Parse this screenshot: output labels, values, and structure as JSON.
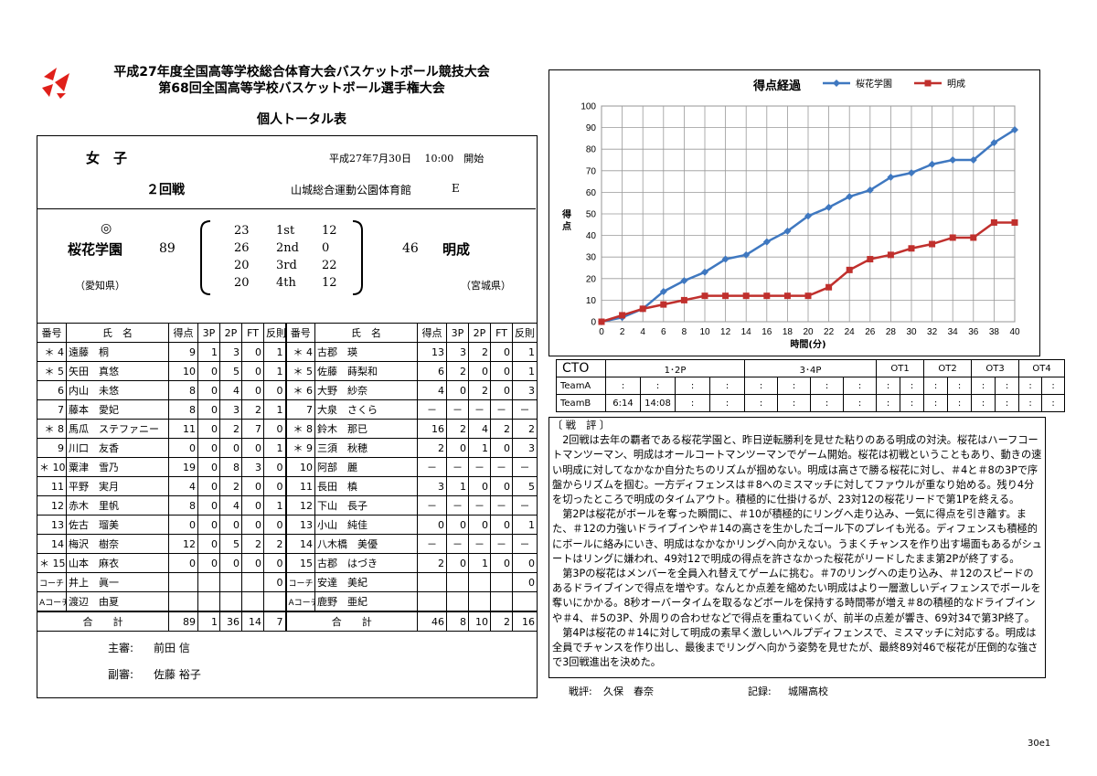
{
  "header": {
    "title1": "平成27年度全国高等学校総合体育大会バスケットボール競技大会",
    "title2": "第68回全国高等学校バスケットボール選手権大会",
    "subtitle": "個人トータル表"
  },
  "game": {
    "category": "女　子",
    "date_time": "平成27年7月30日　 10:00　開始",
    "round": "２回戦",
    "venue": "山城総合運動公園体育館",
    "court": "E",
    "winner_mark": "◎",
    "team_a": "桜花学園",
    "team_a_pref": "（愛知県）",
    "team_a_score": "89",
    "team_b": "明成",
    "team_b_pref": "（宮城県）",
    "team_b_score": "46",
    "quarters": [
      {
        "a": "23",
        "label": "1st",
        "b": "12"
      },
      {
        "a": "26",
        "label": "2nd",
        "b": "0"
      },
      {
        "a": "20",
        "label": "3rd",
        "b": "22"
      },
      {
        "a": "20",
        "label": "4th",
        "b": "12"
      }
    ]
  },
  "stats": {
    "columns": [
      "番号",
      "氏　名",
      "得点",
      "3P",
      "2P",
      "FT",
      "反則"
    ],
    "rows": [
      {
        "a": [
          "＊ 4",
          "遠藤　桐",
          "9",
          "1",
          "3",
          "0",
          "1"
        ],
        "b": [
          "＊ 4",
          "古郡　瑛",
          "13",
          "3",
          "2",
          "0",
          "1"
        ]
      },
      {
        "a": [
          "＊ 5",
          "矢田　真悠",
          "10",
          "0",
          "5",
          "0",
          "1"
        ],
        "b": [
          "＊ 5",
          "佐藤　蒔梨和",
          "6",
          "2",
          "0",
          "0",
          "1"
        ]
      },
      {
        "a": [
          "6",
          "内山　未悠",
          "8",
          "0",
          "4",
          "0",
          "0"
        ],
        "b": [
          "＊ 6",
          "大野　紗奈",
          "4",
          "0",
          "2",
          "0",
          "3"
        ]
      },
      {
        "a": [
          "7",
          "藤本　愛妃",
          "8",
          "0",
          "3",
          "2",
          "1"
        ],
        "b": [
          "7",
          "大泉　さくら",
          "－",
          "－",
          "－",
          "－",
          "－"
        ]
      },
      {
        "a": [
          "＊ 8",
          "馬瓜　ステファニー",
          "11",
          "0",
          "2",
          "7",
          "0"
        ],
        "b": [
          "＊ 8",
          "鈴木　那已",
          "16",
          "2",
          "4",
          "2",
          "2"
        ]
      },
      {
        "a": [
          "9",
          "川口　友香",
          "0",
          "0",
          "0",
          "0",
          "1"
        ],
        "b": [
          "＊ 9",
          "三須　秋穂",
          "2",
          "0",
          "1",
          "0",
          "3"
        ]
      },
      {
        "a": [
          "＊ 10",
          "粟津　雪乃",
          "19",
          "0",
          "8",
          "3",
          "0"
        ],
        "b": [
          "10",
          "阿部　麗",
          "－",
          "－",
          "－",
          "－",
          "－"
        ]
      },
      {
        "a": [
          "11",
          "平野　実月",
          "4",
          "0",
          "2",
          "0",
          "0"
        ],
        "b": [
          "11",
          "長田　槙",
          "3",
          "1",
          "0",
          "0",
          "5"
        ]
      },
      {
        "a": [
          "12",
          "赤木　里帆",
          "8",
          "0",
          "4",
          "0",
          "1"
        ],
        "b": [
          "12",
          "下山　長子",
          "－",
          "－",
          "－",
          "－",
          "－"
        ]
      },
      {
        "a": [
          "13",
          "佐古　瑠美",
          "0",
          "0",
          "0",
          "0",
          "0"
        ],
        "b": [
          "13",
          "小山　純佳",
          "0",
          "0",
          "0",
          "0",
          "1"
        ]
      },
      {
        "a": [
          "14",
          "梅沢　樹奈",
          "12",
          "0",
          "5",
          "2",
          "2"
        ],
        "b": [
          "14",
          "八木橋　美優",
          "－",
          "－",
          "－",
          "－",
          "－"
        ]
      },
      {
        "a": [
          "＊ 15",
          "山本　麻衣",
          "0",
          "0",
          "0",
          "0",
          "0"
        ],
        "b": [
          "15",
          "古郡　はづき",
          "2",
          "0",
          "1",
          "0",
          "0"
        ]
      },
      {
        "a": [
          "コーチ",
          "井上　眞一",
          "",
          "",
          "",
          "",
          "0"
        ],
        "b": [
          "コーチ",
          "安達　美紀",
          "",
          "",
          "",
          "",
          "0"
        ]
      },
      {
        "a": [
          "Aコーチ",
          "渡辺　由夏",
          "",
          "",
          "",
          "",
          ""
        ],
        "b": [
          "Aコーチ",
          "鹿野　亜紀",
          "",
          "",
          "",
          "",
          ""
        ]
      }
    ],
    "totals": {
      "label": "合　　計",
      "a": [
        "89",
        "1",
        "36",
        "14",
        "7"
      ],
      "b": [
        "46",
        "8",
        "10",
        "2",
        "16"
      ]
    }
  },
  "officials": {
    "referee_label": "主審:",
    "referee": "前田 信",
    "umpire_label": "副審:",
    "umpire": "佐藤 裕子"
  },
  "chart_data": {
    "type": "line",
    "title": "得点経過",
    "xlabel": "時間(分)",
    "ylabel": "得点",
    "x": [
      0,
      2,
      4,
      6,
      8,
      10,
      12,
      14,
      16,
      18,
      20,
      22,
      24,
      26,
      28,
      30,
      32,
      34,
      36,
      38,
      40
    ],
    "series": [
      {
        "name": "桜花学園",
        "color": "#3f78c0",
        "values": [
          0,
          2,
          6,
          14,
          19,
          23,
          29,
          31,
          37,
          42,
          49,
          53,
          58,
          61,
          67,
          69,
          73,
          75,
          75,
          83,
          89
        ]
      },
      {
        "name": "明成",
        "color": "#c0302d",
        "values": [
          0,
          3,
          6,
          8,
          10,
          12,
          12,
          12,
          12,
          12,
          12,
          16,
          24,
          29,
          31,
          34,
          36,
          39,
          39,
          46,
          46
        ]
      }
    ],
    "xlim": [
      0,
      40
    ],
    "ylim": [
      0,
      100
    ],
    "yticks": [
      0,
      10,
      20,
      30,
      40,
      50,
      60,
      70,
      80,
      90,
      100
    ],
    "grid": true,
    "legend": "top"
  },
  "cto": {
    "header": [
      "CTO",
      "1･2P",
      "3･4P",
      "OT1",
      "OT2",
      "OT3",
      "OT4"
    ],
    "team_a_label": "TeamA",
    "team_b_label": "TeamB",
    "team_b_times": [
      "6:14",
      "14:08"
    ],
    "placeholder": ":"
  },
  "review": {
    "heading": "〔 戦　評 〕",
    "paragraphs": [
      "2回戦は去年の覇者である桜花学園と、昨日逆転勝利を見せた粘りのある明成の対決。桜花はハーフコートマンツーマン、明成はオールコートマンツーマンでゲーム開始。桜花は初戦ということもあり、動きの速い明成に対してなかなか自分たちのリズムが掴めない。明成は高さで勝る桜花に対し、＃4と＃8の3Pで序盤からリズムを掴む。一方ディフェンスは＃8へのミスマッチに対してファウルが重なり始める。残り4分を切ったところで明成のタイムアウト。積極的に仕掛けるが、23対12の桜花リードで第1Pを終える。",
      "第2Pは桜花がボールを奪った瞬間に、＃10が積極的にリングへ走り込み、一気に得点を引き離す。また、＃12の力強いドライブインや＃14の高さを生かしたゴール下のプレイも光る。ディフェンスも積極的にボールに絡みにいき、明成はなかなかリングへ向かえない。うまくチャンスを作り出す場面もあるがシュートはリングに嫌われ、49対12で明成の得点を許さなかった桜花がリードしたまま第2Pが終了する。",
      "第3Pの桜花はメンバーを全員入れ替えてゲームに挑む。＃7のリングへの走り込み、＃12のスピードのあるドライブインで得点を増やす。なんとか点差を縮めたい明成はより一層激しいディフェンスでボールを奪いにかかる。8秒オーバータイムを取るなどボールを保持する時間帯が増え＃8の積極的なドライブインや＃4、＃5の3P、外周りの合わせなどで得点を重ねていくが、前半の点差が響き、69対34で第3P終了。",
      "第4Pは桜花の＃14に対して明成の素早く激しいヘルプディフェンスで、ミスマッチに対応する。明成は全員でチャンスを作り出し、最後までリングへ向かう姿勢を見せたが、最終89対46で桜花が圧倒的な強さで3回戦進出を決めた。"
    ]
  },
  "footer": {
    "writer_label": "戦評:",
    "writer": "久保　春奈",
    "recorder_label": "記録:",
    "recorder": "城陽高校",
    "page_code": "30e1"
  }
}
